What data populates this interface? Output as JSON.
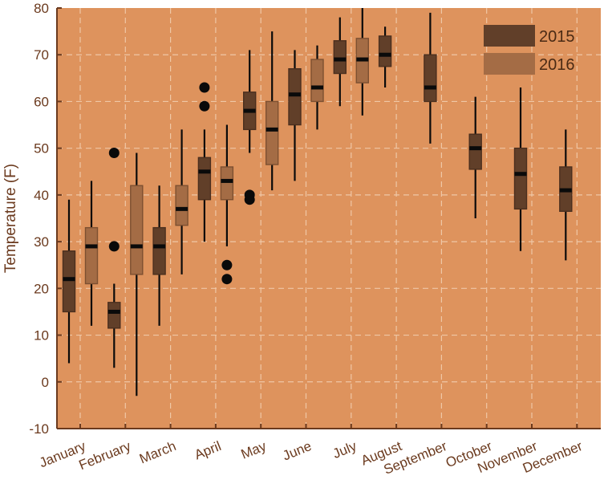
{
  "chart_data": {
    "type": "box",
    "title": "",
    "xlabel": "",
    "ylabel": "Temperature (F)",
    "ylim": [
      -10,
      80
    ],
    "yticks": [
      -10,
      0,
      10,
      20,
      30,
      40,
      50,
      60,
      70,
      80
    ],
    "grid": true,
    "legend_position": "top-right",
    "background_color": "#de935d",
    "categories": [
      "January",
      "February",
      "March",
      "April",
      "May",
      "June",
      "July",
      "August",
      "September",
      "October",
      "November",
      "December"
    ],
    "series": [
      {
        "name": "2015",
        "color": "#613f29",
        "boxes": [
          {
            "category": "January",
            "whisker_low": 4,
            "q1": 15,
            "median": 22,
            "q3": 28,
            "whisker_high": 39,
            "outliers": []
          },
          {
            "category": "February",
            "whisker_low": 3,
            "q1": 11.5,
            "median": 15,
            "q3": 17,
            "whisker_high": 21,
            "outliers": [
              29,
              49
            ]
          },
          {
            "category": "March",
            "whisker_low": 12,
            "q1": 23,
            "median": 29,
            "q3": 33,
            "whisker_high": 42,
            "outliers": []
          },
          {
            "category": "April",
            "whisker_low": 30,
            "q1": 39,
            "median": 45,
            "q3": 48,
            "whisker_high": 54,
            "outliers": [
              59,
              63
            ]
          },
          {
            "category": "May",
            "whisker_low": 49,
            "q1": 54,
            "median": 58,
            "q3": 62,
            "whisker_high": 71,
            "outliers": [
              39,
              40
            ]
          },
          {
            "category": "June",
            "whisker_low": 43,
            "q1": 55,
            "median": 61.5,
            "q3": 67,
            "whisker_high": 71,
            "outliers": []
          },
          {
            "category": "July",
            "whisker_low": 59,
            "q1": 66,
            "median": 69,
            "q3": 73,
            "whisker_high": 78,
            "outliers": []
          },
          {
            "category": "August",
            "whisker_low": 63,
            "q1": 67.5,
            "median": 70,
            "q3": 74,
            "whisker_high": 76,
            "outliers": []
          },
          {
            "category": "September",
            "whisker_low": 51,
            "q1": 60,
            "median": 63,
            "q3": 70,
            "whisker_high": 79,
            "outliers": []
          },
          {
            "category": "October",
            "whisker_low": 35,
            "q1": 45.5,
            "median": 50,
            "q3": 53,
            "whisker_high": 61,
            "outliers": []
          },
          {
            "category": "November",
            "whisker_low": 28,
            "q1": 37,
            "median": 44.5,
            "q3": 50,
            "whisker_high": 63,
            "outliers": []
          },
          {
            "category": "December",
            "whisker_low": 26,
            "q1": 36.5,
            "median": 41,
            "q3": 46,
            "whisker_high": 54,
            "outliers": []
          }
        ]
      },
      {
        "name": "2016",
        "color": "#a46c45",
        "boxes": [
          {
            "category": "January",
            "whisker_low": 12,
            "q1": 21,
            "median": 29,
            "q3": 33,
            "whisker_high": 43,
            "outliers": []
          },
          {
            "category": "February",
            "whisker_low": -3,
            "q1": 23,
            "median": 29,
            "q3": 42,
            "whisker_high": 49,
            "outliers": []
          },
          {
            "category": "March",
            "whisker_low": 23,
            "q1": 33.5,
            "median": 37,
            "q3": 42,
            "whisker_high": 54,
            "outliers": []
          },
          {
            "category": "April",
            "whisker_low": 29,
            "q1": 39,
            "median": 43,
            "q3": 46,
            "whisker_high": 55,
            "outliers": [
              22,
              25
            ]
          },
          {
            "category": "May",
            "whisker_low": 41,
            "q1": 46.5,
            "median": 54,
            "q3": 60,
            "whisker_high": 75,
            "outliers": []
          },
          {
            "category": "June",
            "whisker_low": 54,
            "q1": 60,
            "median": 63,
            "q3": 69,
            "whisker_high": 72,
            "outliers": []
          },
          {
            "category": "July",
            "whisker_low": 57,
            "q1": 64,
            "median": 69,
            "q3": 73.5,
            "whisker_high": 80,
            "outliers": []
          }
        ]
      }
    ]
  }
}
